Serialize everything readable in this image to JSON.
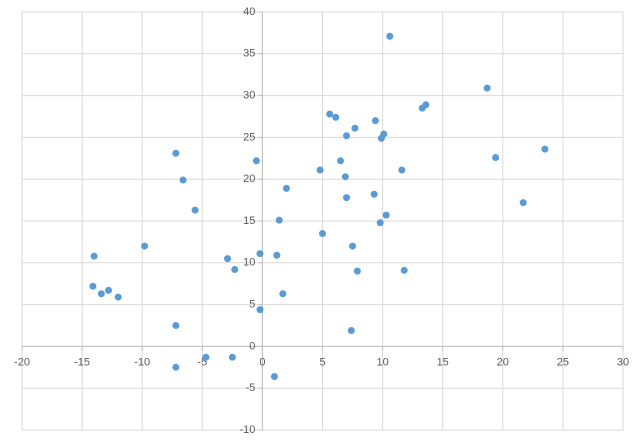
{
  "chart_data": {
    "type": "scatter",
    "x": [
      10.6,
      18.7,
      13.6,
      13.3,
      5.6,
      6.1,
      9.4,
      7.7,
      7.0,
      10.1,
      9.9,
      -7.2,
      23.5,
      19.4,
      -0.5,
      6.5,
      4.8,
      11.6,
      6.9,
      -6.6,
      2.0,
      9.3,
      7.0,
      21.7,
      -5.6,
      10.3,
      1.4,
      9.8,
      5.0,
      -9.8,
      7.5,
      -14.0,
      -0.2,
      1.2,
      -2.9,
      -2.3,
      7.9,
      11.8,
      -14.1,
      -12.8,
      -13.4,
      -12.0,
      1.7,
      -0.2,
      -7.2,
      7.4,
      -4.7,
      -2.5,
      -7.2,
      1.0
    ],
    "values": [
      37.1,
      30.9,
      28.9,
      28.5,
      27.8,
      27.4,
      27.0,
      26.1,
      25.2,
      25.4,
      24.9,
      23.1,
      23.6,
      22.6,
      22.2,
      22.2,
      21.1,
      21.1,
      20.3,
      19.9,
      18.9,
      18.2,
      17.8,
      17.2,
      16.3,
      15.7,
      15.1,
      14.8,
      13.5,
      12.0,
      12.0,
      10.8,
      11.1,
      10.9,
      10.5,
      9.2,
      9.0,
      9.1,
      7.2,
      6.7,
      6.3,
      5.9,
      6.3,
      4.4,
      2.5,
      1.9,
      -1.3,
      -1.3,
      -2.5,
      -3.6
    ],
    "color": "#5b9bd5",
    "xlim": [
      -20,
      30
    ],
    "xticks": [
      -20,
      -15,
      -10,
      -5,
      0,
      5,
      10,
      15,
      20,
      25,
      30
    ],
    "ylim": [
      -10,
      40
    ],
    "yticks": [
      -10,
      -5,
      0,
      5,
      10,
      15,
      20,
      25,
      30,
      35,
      40
    ],
    "grid": true
  }
}
